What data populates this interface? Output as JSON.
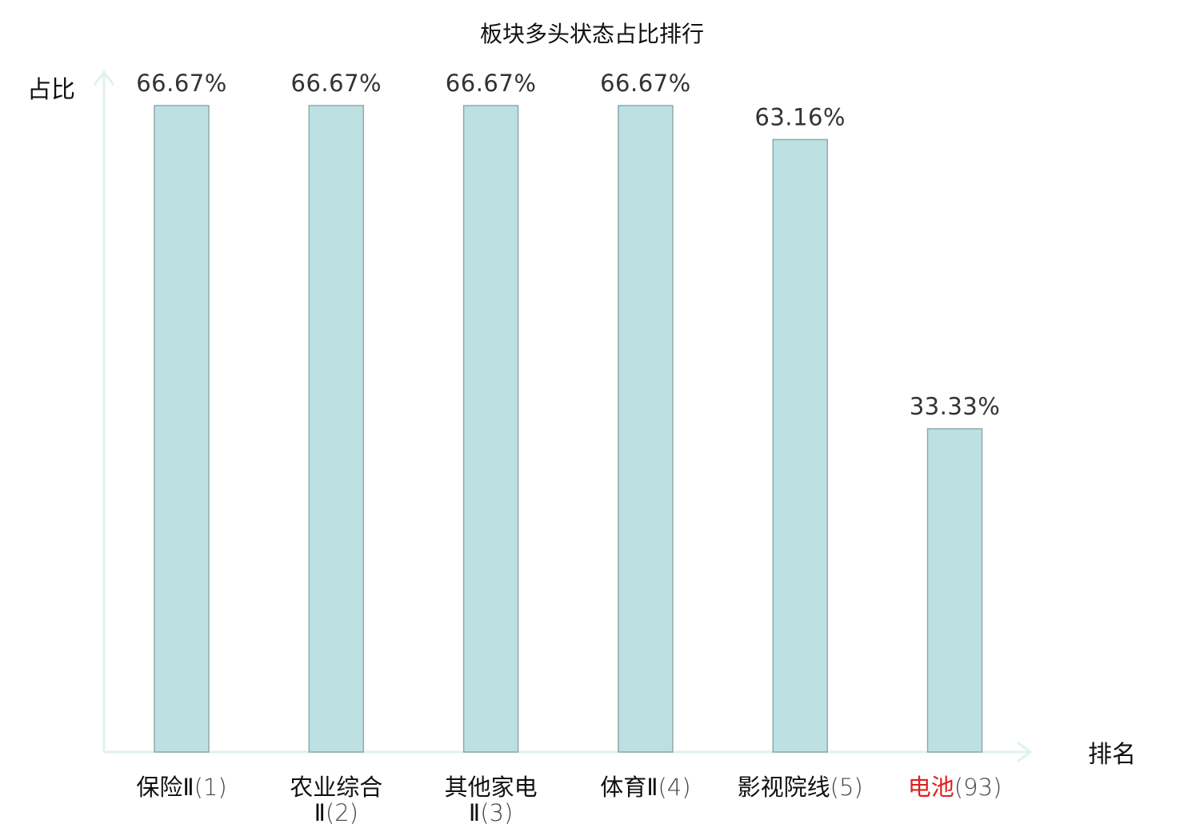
{
  "chart_data": {
    "type": "bar",
    "title": "板块多头状态占比排行",
    "ylabel": "占比",
    "xlabel": "排名",
    "ylim": [
      0,
      70
    ],
    "unit": "%",
    "grid": false,
    "legend": "none",
    "categories": [
      {
        "name": "保险Ⅱ",
        "rank": "(1)",
        "highlight": false
      },
      {
        "name": "农业综合Ⅱ",
        "rank": "(2)",
        "highlight": false
      },
      {
        "name": "其他家电Ⅱ",
        "rank": "(3)",
        "highlight": false
      },
      {
        "name": "体育Ⅱ",
        "rank": "(4)",
        "highlight": false
      },
      {
        "name": "影视院线",
        "rank": "(5)",
        "highlight": false
      },
      {
        "name": "电池",
        "rank": "(93)",
        "highlight": true
      }
    ],
    "values": [
      66.67,
      66.67,
      66.67,
      66.67,
      63.16,
      33.33
    ],
    "value_labels": [
      "66.67%",
      "66.67%",
      "66.67%",
      "66.67%",
      "63.16%",
      "33.33%"
    ],
    "colors": {
      "bar_fill": "#bde1e3",
      "bar_stroke": "#8ea9aa",
      "axis": "#dff2ef",
      "highlight_text": "#e02020",
      "text": "#111111"
    }
  }
}
